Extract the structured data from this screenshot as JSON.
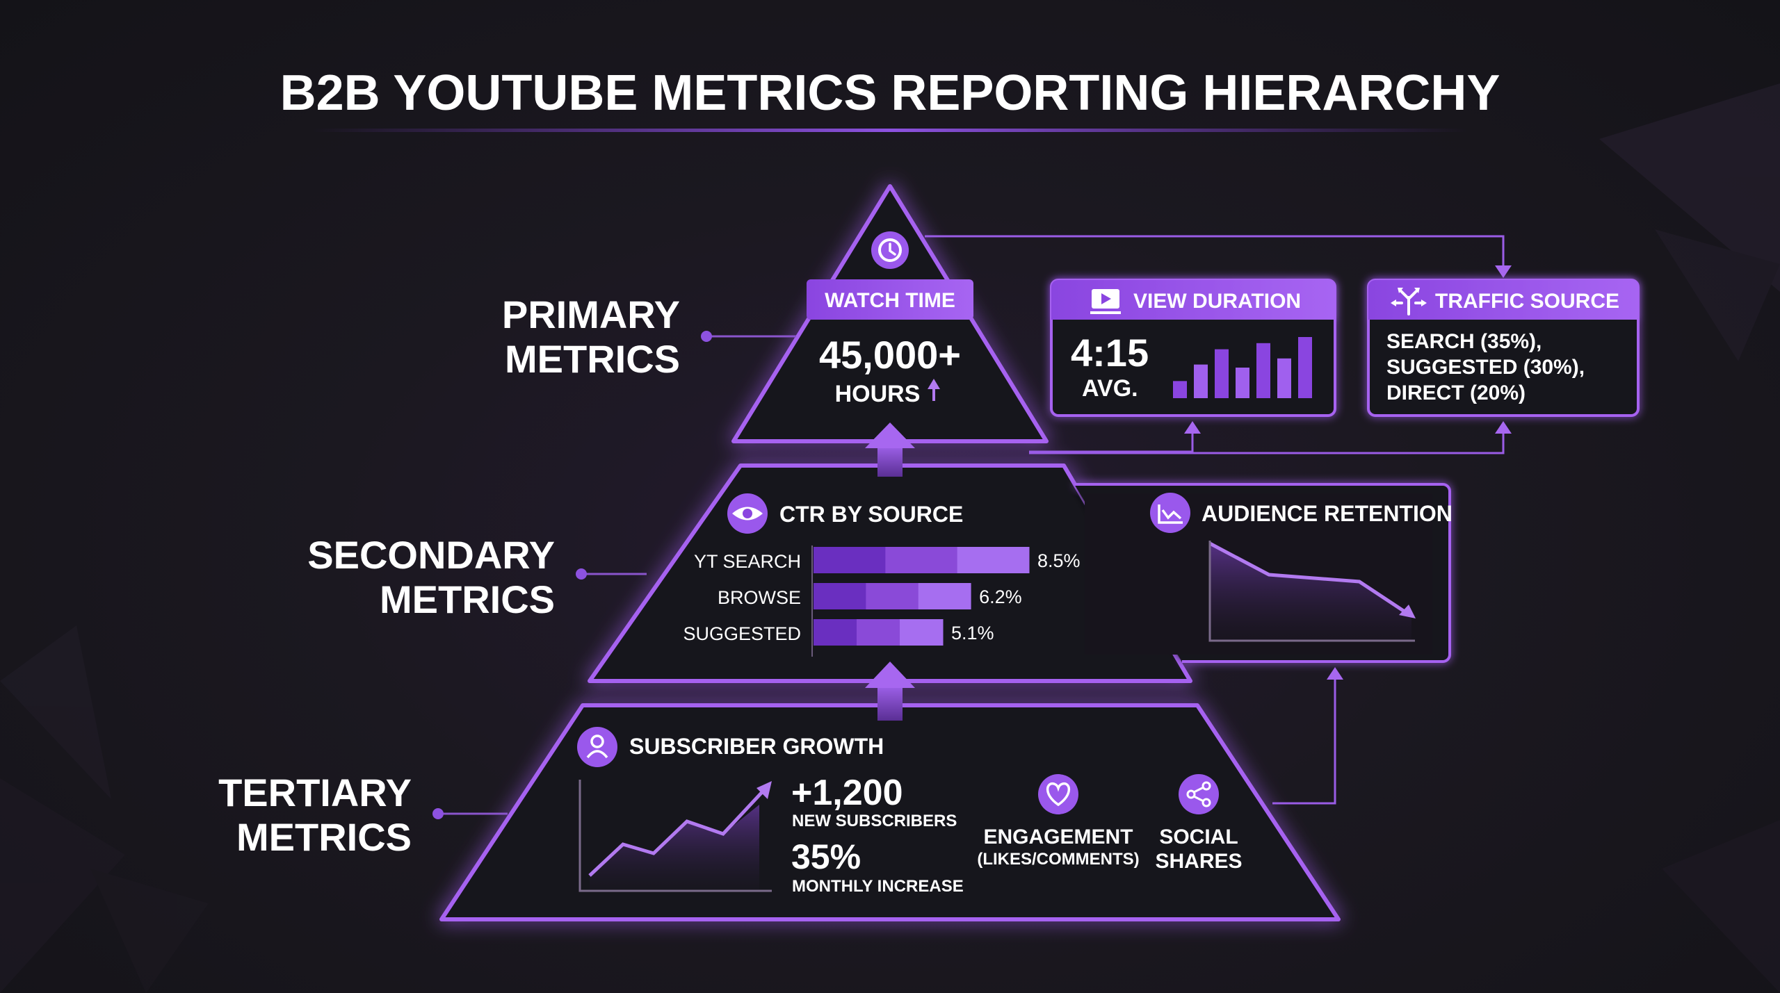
{
  "title": "B2B YOUTUBE METRICS REPORTING HIERARCHY",
  "tiers": {
    "primary": [
      "PRIMARY",
      "METRICS"
    ],
    "secondary": [
      "SECONDARY",
      "METRICS"
    ],
    "tertiary": [
      "TERTIARY",
      "METRICS"
    ]
  },
  "watch_time": {
    "label": "WATCH TIME",
    "value": "45,000+",
    "unit": "HOURS",
    "icon": "clock-icon"
  },
  "view_duration": {
    "label": "VIEW DURATION",
    "value": "4:15",
    "sub": "AVG.",
    "icon": "play-screen-icon",
    "bar_levels": [
      0.28,
      0.55,
      0.8,
      0.5,
      0.9,
      0.65,
      1.0
    ]
  },
  "traffic_source": {
    "label": "TRAFFIC SOURCE",
    "lines": [
      "SEARCH (35%),",
      "SUGGESTED (30%),",
      "DIRECT (20%)"
    ],
    "icon": "split-arrows-icon"
  },
  "ctr_by_source": {
    "label": "CTR BY SOURCE",
    "icon": "eye-icon",
    "rows": [
      {
        "name": "YT SEARCH",
        "value": 8.5,
        "text": "8.5%"
      },
      {
        "name": "BROWSE",
        "value": 6.2,
        "text": "6.2%"
      },
      {
        "name": "SUGGESTED",
        "value": 5.1,
        "text": "5.1%"
      }
    ]
  },
  "audience_retention": {
    "label": "AUDIENCE RETENTION",
    "icon": "line-chart-icon"
  },
  "subscriber_growth": {
    "label": "SUBSCRIBER GROWTH",
    "icon": "user-icon",
    "new_value": "+1,200",
    "new_label": "NEW SUBSCRIBERS",
    "pct_value": "35%",
    "pct_label": "MONTHLY INCREASE"
  },
  "engagement": {
    "label": "ENGAGEMENT",
    "sub": "(LIKES/COMMENTS)",
    "icon": "heart-icon"
  },
  "social_shares": {
    "lines": [
      "SOCIAL",
      "SHARES"
    ],
    "icon": "share-icon"
  },
  "colors": {
    "accent": "#a45ff0",
    "accent_light": "#c58cff",
    "panel": "#19161e",
    "bg": "#16151a"
  }
}
